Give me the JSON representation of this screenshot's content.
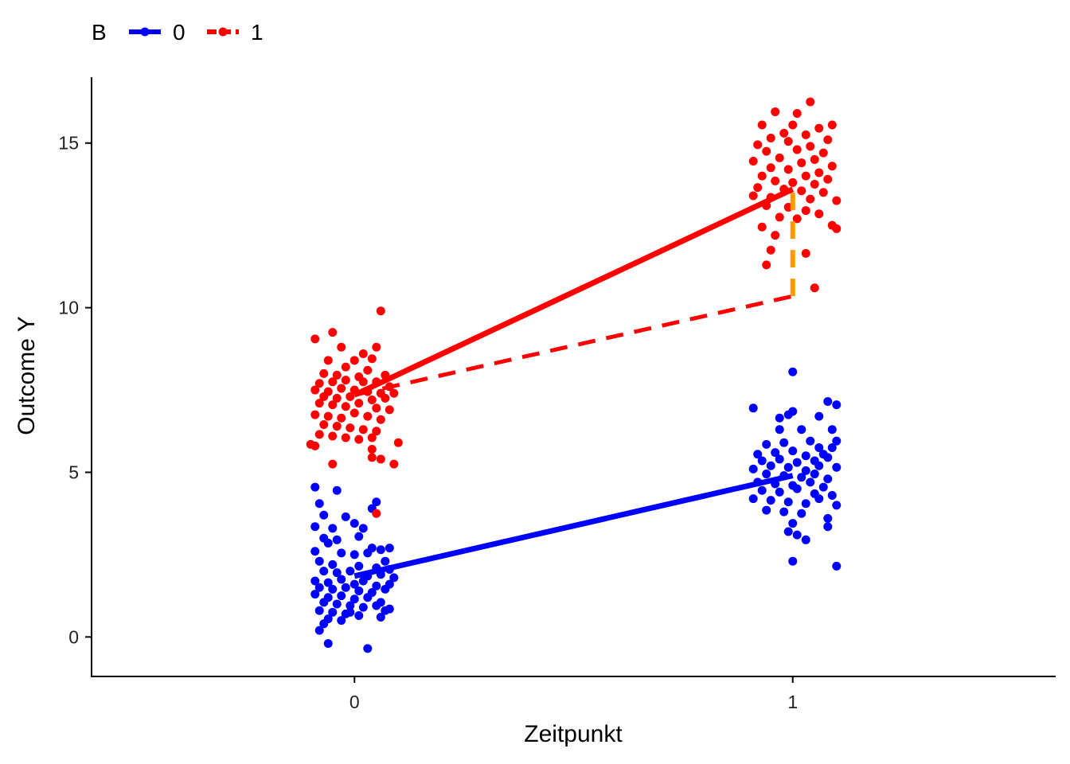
{
  "chart_data": {
    "type": "scatter",
    "title": "",
    "xlabel": "Zeitpunkt",
    "ylabel": "Outcome Y",
    "xlim": [
      -0.6,
      1.6
    ],
    "ylim": [
      -1.2,
      17.0
    ],
    "x_ticks": [
      0,
      1
    ],
    "x_tick_labels": [
      "0",
      "1"
    ],
    "y_ticks": [
      0,
      5,
      10,
      15
    ],
    "y_tick_labels": [
      "0",
      "5",
      "10",
      "15"
    ],
    "grid": false,
    "legend": {
      "title": "B",
      "position": "top-left",
      "entries": [
        {
          "label": "0",
          "color": "#0000FF"
        },
        {
          "label": "1",
          "color": "#FF0000"
        }
      ]
    },
    "series": [
      {
        "name": "0",
        "color": "#0000FF",
        "means": [
          {
            "x": 0,
            "y": 1.85
          },
          {
            "x": 1,
            "y": 4.9
          }
        ],
        "points": [
          [
            -0.09,
            4.55
          ],
          [
            -0.04,
            4.45
          ],
          [
            -0.08,
            4.05
          ],
          [
            -0.07,
            3.7
          ],
          [
            0.05,
            4.1
          ],
          [
            0.04,
            3.9
          ],
          [
            -0.02,
            3.65
          ],
          [
            -0.09,
            3.35
          ],
          [
            -0.05,
            3.3
          ],
          [
            0.0,
            3.45
          ],
          [
            0.02,
            3.3
          ],
          [
            -0.07,
            3.0
          ],
          [
            -0.04,
            2.95
          ],
          [
            -0.06,
            2.85
          ],
          [
            0.01,
            3.05
          ],
          [
            0.04,
            2.7
          ],
          [
            0.06,
            2.65
          ],
          [
            0.08,
            2.7
          ],
          [
            -0.09,
            2.6
          ],
          [
            -0.03,
            2.55
          ],
          [
            0.0,
            2.5
          ],
          [
            0.03,
            2.55
          ],
          [
            0.07,
            2.3
          ],
          [
            -0.08,
            2.3
          ],
          [
            -0.05,
            2.2
          ],
          [
            0.01,
            2.15
          ],
          [
            0.05,
            2.1
          ],
          [
            0.08,
            2.05
          ],
          [
            -0.07,
            2.0
          ],
          [
            -0.04,
            1.95
          ],
          [
            -0.01,
            2.0
          ],
          [
            0.03,
            1.85
          ],
          [
            0.06,
            1.9
          ],
          [
            0.09,
            1.8
          ],
          [
            -0.09,
            1.7
          ],
          [
            -0.06,
            1.65
          ],
          [
            -0.03,
            1.75
          ],
          [
            0.0,
            1.6
          ],
          [
            0.02,
            1.7
          ],
          [
            0.05,
            1.55
          ],
          [
            0.08,
            1.6
          ],
          [
            -0.08,
            1.5
          ],
          [
            -0.05,
            1.45
          ],
          [
            -0.02,
            1.5
          ],
          [
            0.01,
            1.4
          ],
          [
            0.04,
            1.35
          ],
          [
            0.07,
            1.45
          ],
          [
            -0.09,
            1.3
          ],
          [
            -0.06,
            1.2
          ],
          [
            -0.03,
            1.25
          ],
          [
            0.0,
            1.15
          ],
          [
            0.03,
            1.2
          ],
          [
            0.06,
            1.05
          ],
          [
            -0.07,
            1.05
          ],
          [
            -0.04,
            1.0
          ],
          [
            -0.01,
            0.95
          ],
          [
            0.02,
            0.9
          ],
          [
            0.05,
            0.95
          ],
          [
            0.08,
            0.85
          ],
          [
            -0.08,
            0.8
          ],
          [
            -0.05,
            0.75
          ],
          [
            -0.02,
            0.7
          ],
          [
            0.01,
            0.65
          ],
          [
            0.06,
            0.6
          ],
          [
            -0.06,
            0.55
          ],
          [
            -0.03,
            0.5
          ],
          [
            -0.07,
            0.4
          ],
          [
            -0.08,
            0.2
          ],
          [
            -0.06,
            -0.2
          ],
          [
            0.03,
            -0.35
          ],
          [
            0.07,
            0.8
          ],
          [
            -0.01,
            0.75
          ],
          [
            0.91,
            6.95
          ],
          [
            0.97,
            6.65
          ],
          [
            0.99,
            6.75
          ],
          [
            1.0,
            6.85
          ],
          [
            1.06,
            6.7
          ],
          [
            1.08,
            7.15
          ],
          [
            1.1,
            7.05
          ],
          [
            1.0,
            8.05
          ],
          [
            0.97,
            6.3
          ],
          [
            1.02,
            6.3
          ],
          [
            1.09,
            6.3
          ],
          [
            0.94,
            5.85
          ],
          [
            0.98,
            5.9
          ],
          [
            1.04,
            5.95
          ],
          [
            1.06,
            5.75
          ],
          [
            1.1,
            5.95
          ],
          [
            0.92,
            5.55
          ],
          [
            0.96,
            5.6
          ],
          [
            1.0,
            5.65
          ],
          [
            1.03,
            5.5
          ],
          [
            1.07,
            5.55
          ],
          [
            1.09,
            5.75
          ],
          [
            0.93,
            5.35
          ],
          [
            0.97,
            5.4
          ],
          [
            1.01,
            5.3
          ],
          [
            1.05,
            5.35
          ],
          [
            1.08,
            5.45
          ],
          [
            0.91,
            5.1
          ],
          [
            0.95,
            5.2
          ],
          [
            0.99,
            5.15
          ],
          [
            1.03,
            5.05
          ],
          [
            1.06,
            5.2
          ],
          [
            1.1,
            5.15
          ],
          [
            0.94,
            4.95
          ],
          [
            0.98,
            4.9
          ],
          [
            1.02,
            4.85
          ],
          [
            1.05,
            4.95
          ],
          [
            1.08,
            4.8
          ],
          [
            0.92,
            4.7
          ],
          [
            0.96,
            4.65
          ],
          [
            1.0,
            4.6
          ],
          [
            1.04,
            4.7
          ],
          [
            1.07,
            4.55
          ],
          [
            0.93,
            4.45
          ],
          [
            0.97,
            4.4
          ],
          [
            1.01,
            4.5
          ],
          [
            1.05,
            4.35
          ],
          [
            1.09,
            4.3
          ],
          [
            0.91,
            4.2
          ],
          [
            0.95,
            4.15
          ],
          [
            0.99,
            4.1
          ],
          [
            1.03,
            4.05
          ],
          [
            1.06,
            4.2
          ],
          [
            1.1,
            4.0
          ],
          [
            0.94,
            3.85
          ],
          [
            0.98,
            3.8
          ],
          [
            1.02,
            3.75
          ],
          [
            1.08,
            3.6
          ],
          [
            1.0,
            3.45
          ],
          [
            0.99,
            3.2
          ],
          [
            1.01,
            3.1
          ],
          [
            1.03,
            2.95
          ],
          [
            1.1,
            2.15
          ],
          [
            1.0,
            2.3
          ],
          [
            1.08,
            3.35
          ]
        ]
      },
      {
        "name": "1",
        "color": "#FF0000",
        "means": [
          {
            "x": 0,
            "y": 7.35
          },
          {
            "x": 1,
            "y": 13.6
          }
        ],
        "counterfactual": [
          {
            "x": 0,
            "y": 7.35
          },
          {
            "x": 1,
            "y": 10.35
          }
        ],
        "points": [
          [
            0.06,
            9.9
          ],
          [
            -0.05,
            9.25
          ],
          [
            -0.09,
            9.05
          ],
          [
            0.05,
            8.8
          ],
          [
            -0.03,
            8.8
          ],
          [
            0.02,
            8.6
          ],
          [
            -0.06,
            8.4
          ],
          [
            0.0,
            8.4
          ],
          [
            0.04,
            8.45
          ],
          [
            -0.02,
            8.2
          ],
          [
            -0.07,
            8.0
          ],
          [
            0.03,
            8.1
          ],
          [
            -0.04,
            7.95
          ],
          [
            0.07,
            7.95
          ],
          [
            0.01,
            7.9
          ],
          [
            -0.08,
            7.7
          ],
          [
            -0.05,
            7.75
          ],
          [
            -0.02,
            7.8
          ],
          [
            0.02,
            7.75
          ],
          [
            0.05,
            7.75
          ],
          [
            0.08,
            7.6
          ],
          [
            -0.09,
            7.5
          ],
          [
            -0.06,
            7.45
          ],
          [
            -0.03,
            7.55
          ],
          [
            0.0,
            7.5
          ],
          [
            0.03,
            7.45
          ],
          [
            0.06,
            7.4
          ],
          [
            0.09,
            7.4
          ],
          [
            -0.07,
            7.3
          ],
          [
            -0.04,
            7.25
          ],
          [
            -0.01,
            7.3
          ],
          [
            0.04,
            7.2
          ],
          [
            0.07,
            7.25
          ],
          [
            -0.08,
            7.1
          ],
          [
            -0.05,
            7.05
          ],
          [
            -0.02,
            7.0
          ],
          [
            0.01,
            7.1
          ],
          [
            0.05,
            6.95
          ],
          [
            0.08,
            6.9
          ],
          [
            -0.09,
            6.75
          ],
          [
            -0.06,
            6.7
          ],
          [
            -0.03,
            6.65
          ],
          [
            0.0,
            6.8
          ],
          [
            0.03,
            6.7
          ],
          [
            0.06,
            6.6
          ],
          [
            -0.07,
            6.45
          ],
          [
            -0.04,
            6.4
          ],
          [
            -0.01,
            6.35
          ],
          [
            0.02,
            6.3
          ],
          [
            0.05,
            6.25
          ],
          [
            -0.08,
            6.15
          ],
          [
            -0.05,
            6.1
          ],
          [
            -0.02,
            6.05
          ],
          [
            0.01,
            6.0
          ],
          [
            0.04,
            6.05
          ],
          [
            0.1,
            5.9
          ],
          [
            -0.1,
            5.85
          ],
          [
            -0.09,
            5.8
          ],
          [
            0.04,
            5.7
          ],
          [
            0.04,
            5.45
          ],
          [
            0.06,
            5.4
          ],
          [
            -0.05,
            5.25
          ],
          [
            0.09,
            5.25
          ],
          [
            0.05,
            3.75
          ],
          [
            1.04,
            16.25
          ],
          [
            0.96,
            15.95
          ],
          [
            1.01,
            15.9
          ],
          [
            1.09,
            15.55
          ],
          [
            0.93,
            15.55
          ],
          [
            1.0,
            15.55
          ],
          [
            1.06,
            15.45
          ],
          [
            0.98,
            15.3
          ],
          [
            1.03,
            15.25
          ],
          [
            0.95,
            15.15
          ],
          [
            1.08,
            15.1
          ],
          [
            0.92,
            14.95
          ],
          [
            0.99,
            15.05
          ],
          [
            1.04,
            14.9
          ],
          [
            0.94,
            14.75
          ],
          [
            1.01,
            14.8
          ],
          [
            1.07,
            14.7
          ],
          [
            0.97,
            14.55
          ],
          [
            1.05,
            14.5
          ],
          [
            0.91,
            14.45
          ],
          [
            1.02,
            14.4
          ],
          [
            1.09,
            14.3
          ],
          [
            0.95,
            14.25
          ],
          [
            0.99,
            14.2
          ],
          [
            1.06,
            14.1
          ],
          [
            0.93,
            14.0
          ],
          [
            1.03,
            14.0
          ],
          [
            1.08,
            13.9
          ],
          [
            0.96,
            13.85
          ],
          [
            1.0,
            13.8
          ],
          [
            1.05,
            13.75
          ],
          [
            0.92,
            13.65
          ],
          [
            0.98,
            13.6
          ],
          [
            1.02,
            13.55
          ],
          [
            1.07,
            13.5
          ],
          [
            0.91,
            13.4
          ],
          [
            0.95,
            13.35
          ],
          [
            1.04,
            13.3
          ],
          [
            1.1,
            13.25
          ],
          [
            0.94,
            13.1
          ],
          [
            0.99,
            13.05
          ],
          [
            1.03,
            12.95
          ],
          [
            1.06,
            12.85
          ],
          [
            0.97,
            12.75
          ],
          [
            1.01,
            12.7
          ],
          [
            1.09,
            12.5
          ],
          [
            0.93,
            12.45
          ],
          [
            0.96,
            12.2
          ],
          [
            1.1,
            12.4
          ],
          [
            0.95,
            11.75
          ],
          [
            1.03,
            11.65
          ],
          [
            0.94,
            11.3
          ],
          [
            1.05,
            10.6
          ]
        ]
      }
    ],
    "annotations": [
      {
        "type": "difference-bracket",
        "color": "#FF9900",
        "x": 1,
        "y_from": 10.35,
        "y_to": 13.6,
        "style": "dashed"
      }
    ]
  }
}
